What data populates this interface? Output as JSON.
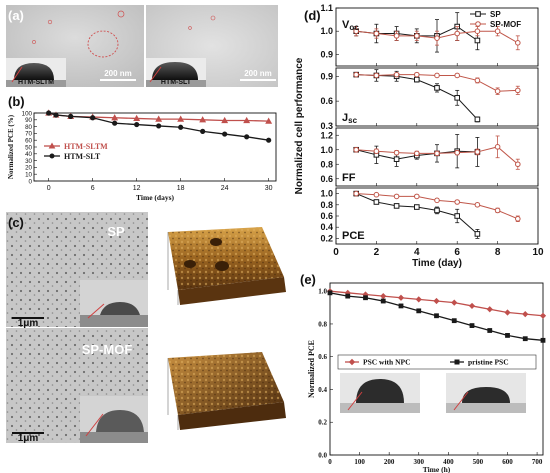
{
  "panel_a": {
    "letter": "(a)",
    "left": {
      "label": "HTM-SLTM",
      "scale_bar": "200 nm"
    },
    "right": {
      "label": "HTM-SLT",
      "scale_bar": "200 nm"
    }
  },
  "panel_c": {
    "letter": "(c)",
    "top": {
      "label": "SP",
      "scale_bar": "1μm"
    },
    "bottom": {
      "label": "SP-MOF",
      "scale_bar": "1μm"
    }
  },
  "colors": {
    "red": "#c0504d",
    "black": "#1a1a1a",
    "brown": "#c0574a",
    "darkbrown": "#a34c3c",
    "afm_light": "#d9a44a",
    "afm_dark": "#5a3410"
  },
  "chart_data": [
    {
      "id": "b",
      "letter": "(b)",
      "type": "line",
      "xlabel": "Time (days)",
      "ylabel": "Normalized PCE (%)",
      "xlim": [
        -2,
        31
      ],
      "ylim": [
        0,
        100
      ],
      "xticks": [
        0,
        6,
        12,
        18,
        24,
        30
      ],
      "yticks": [
        0,
        10,
        20,
        30,
        40,
        50,
        60,
        70,
        80,
        90,
        100
      ],
      "legend": "center-left",
      "series": [
        {
          "name": "HTM-SLTM",
          "color": "#c0504d",
          "marker": "triangle",
          "x": [
            0,
            1,
            3,
            6,
            9,
            12,
            15,
            18,
            21,
            24,
            27,
            30
          ],
          "y": [
            100,
            97,
            95,
            94,
            93,
            92,
            91,
            91,
            90,
            89,
            89,
            88
          ]
        },
        {
          "name": "HTM-SLT",
          "color": "#1a1a1a",
          "marker": "circle",
          "x": [
            0,
            1,
            3,
            6,
            9,
            12,
            15,
            18,
            21,
            24,
            27,
            30
          ],
          "y": [
            100,
            97,
            95,
            93,
            85,
            83,
            81,
            79,
            73,
            69,
            65,
            60
          ]
        }
      ]
    },
    {
      "id": "d",
      "letter": "(d)",
      "type": "line",
      "ylabel": "Normalized cell performance",
      "xlabel": "Time (day)",
      "xlim": [
        0,
        10
      ],
      "xticks": [
        0,
        2,
        4,
        6,
        8,
        10
      ],
      "legend": "top-right",
      "legend_entries": [
        "SP",
        "SP-MOF"
      ],
      "subplots": [
        {
          "label": "V",
          "label_sub": "oc",
          "label_pos": "top-left",
          "ylim": [
            0.85,
            1.1
          ],
          "yticks": [
            0.9,
            1.0,
            1.1
          ],
          "series": [
            {
              "name": "SP",
              "x": [
                1,
                2,
                3,
                4,
                5,
                6,
                7
              ],
              "y": [
                1.0,
                0.99,
                0.99,
                0.98,
                0.98,
                1.02,
                0.96
              ],
              "err": [
                0.02,
                0.04,
                0.03,
                0.03,
                0.07,
                0.06,
                0.04
              ]
            },
            {
              "name": "SP-MOF",
              "x": [
                1,
                2,
                3,
                4,
                5,
                6,
                7,
                8,
                9
              ],
              "y": [
                1.0,
                0.99,
                0.98,
                0.98,
                0.97,
                0.99,
                1.0,
                1.0,
                0.95
              ],
              "err": [
                0.02,
                0.02,
                0.02,
                0.02,
                0.03,
                0.03,
                0.02,
                0.02,
                0.03
              ]
            }
          ]
        },
        {
          "label": "J",
          "label_sub": "sc",
          "label_pos": "bottom-left",
          "ylim": [
            0.3,
            1.0
          ],
          "yticks": [
            0.3,
            0.6,
            0.9
          ],
          "series": [
            {
              "name": "SP",
              "x": [
                1,
                2,
                3,
                4,
                5,
                6,
                7
              ],
              "y": [
                0.92,
                0.91,
                0.9,
                0.86,
                0.76,
                0.64,
                0.38
              ],
              "err": [
                0.02,
                0.07,
                0.06,
                0.03,
                0.05,
                0.09,
                0.03
              ]
            },
            {
              "name": "SP-MOF",
              "x": [
                1,
                2,
                3,
                4,
                5,
                6,
                7,
                8,
                9
              ],
              "y": [
                0.92,
                0.91,
                0.92,
                0.92,
                0.91,
                0.91,
                0.85,
                0.72,
                0.73
              ],
              "err": [
                0.02,
                0.02,
                0.02,
                0.02,
                0.02,
                0.02,
                0.03,
                0.04,
                0.05
              ]
            }
          ]
        },
        {
          "label": "FF",
          "label_pos": "bottom-left",
          "ylim": [
            0.5,
            1.3
          ],
          "yticks": [
            0.6,
            0.8,
            1.0,
            1.2
          ],
          "series": [
            {
              "name": "SP",
              "x": [
                1,
                2,
                3,
                4,
                5,
                6,
                7
              ],
              "y": [
                1.0,
                0.93,
                0.87,
                0.92,
                0.95,
                0.98,
                0.97
              ],
              "err": [
                0.03,
                0.12,
                0.1,
                0.05,
                0.12,
                0.23,
                0.2
              ]
            },
            {
              "name": "SP-MOF",
              "x": [
                1,
                2,
                3,
                4,
                5,
                6,
                7,
                8,
                9
              ],
              "y": [
                1.0,
                0.98,
                0.96,
                0.95,
                0.95,
                0.96,
                0.97,
                1.04,
                0.8
              ],
              "err": [
                0.03,
                0.03,
                0.03,
                0.03,
                0.03,
                0.03,
                0.04,
                0.15,
                0.07
              ]
            }
          ]
        },
        {
          "label": "PCE",
          "label_pos": "bottom-left",
          "ylim": [
            0.1,
            1.1
          ],
          "yticks": [
            0.2,
            0.4,
            0.6,
            0.8,
            1.0
          ],
          "series": [
            {
              "name": "SP",
              "x": [
                1,
                2,
                3,
                4,
                5,
                6,
                7
              ],
              "y": [
                1.0,
                0.85,
                0.78,
                0.76,
                0.7,
                0.6,
                0.28
              ],
              "err": [
                0.02,
                0.03,
                0.03,
                0.03,
                0.06,
                0.12,
                0.08
              ]
            },
            {
              "name": "SP-MOF",
              "x": [
                1,
                2,
                3,
                4,
                5,
                6,
                7,
                8,
                9
              ],
              "y": [
                1.0,
                0.98,
                0.95,
                0.95,
                0.88,
                0.85,
                0.8,
                0.7,
                0.55
              ],
              "err": [
                0.02,
                0.02,
                0.02,
                0.02,
                0.03,
                0.03,
                0.03,
                0.04,
                0.05
              ]
            }
          ]
        }
      ]
    },
    {
      "id": "e",
      "letter": "(e)",
      "type": "line",
      "xlabel": "Time (h)",
      "ylabel": "Normalized PCE",
      "xlim": [
        0,
        720
      ],
      "ylim": [
        0,
        1.05
      ],
      "xticks": [
        0,
        100,
        200,
        300,
        400,
        500,
        600,
        700
      ],
      "yticks": [
        0.0,
        0.2,
        0.4,
        0.6,
        0.8,
        1.0
      ],
      "legend": "bottom",
      "series": [
        {
          "name": "PSC with NPC",
          "color": "#c0504d",
          "marker": "diamond",
          "x": [
            0,
            60,
            120,
            180,
            240,
            300,
            360,
            420,
            480,
            540,
            600,
            660,
            720
          ],
          "y": [
            1.0,
            0.99,
            0.98,
            0.97,
            0.96,
            0.95,
            0.94,
            0.93,
            0.91,
            0.89,
            0.87,
            0.86,
            0.85
          ]
        },
        {
          "name": "pristine PSC",
          "color": "#1a1a1a",
          "marker": "square",
          "x": [
            0,
            60,
            120,
            180,
            240,
            300,
            360,
            420,
            480,
            540,
            600,
            660,
            720
          ],
          "y": [
            0.99,
            0.97,
            0.96,
            0.94,
            0.91,
            0.88,
            0.85,
            0.82,
            0.79,
            0.76,
            0.73,
            0.71,
            0.7
          ]
        }
      ]
    }
  ]
}
